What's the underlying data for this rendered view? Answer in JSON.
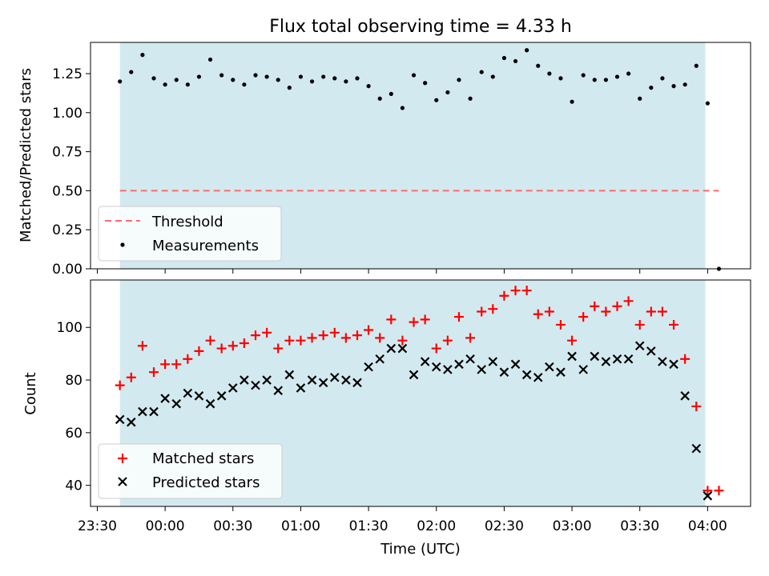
{
  "chart_data": [
    {
      "type": "scatter",
      "title": "Flux total observing time = 4.33 h",
      "ylabel": "Matched/Predicted stars",
      "ylim": [
        0,
        1.45
      ],
      "yticks": [
        "0.00",
        "0.25",
        "0.50",
        "0.75",
        "1.00",
        "1.25"
      ],
      "ytick_values": [
        0,
        0.25,
        0.5,
        0.75,
        1.0,
        1.25
      ],
      "shaded_span": [
        "23:40",
        "03:59"
      ],
      "threshold": {
        "name": "Threshold",
        "value": 0.5,
        "x_range": [
          "23:40",
          "04:05"
        ],
        "color": "#ff6b6b"
      },
      "series": [
        {
          "name": "Measurements",
          "color": "#000000",
          "marker": "dot",
          "values": [
            1.2,
            1.26,
            1.37,
            1.22,
            1.18,
            1.21,
            1.18,
            1.23,
            1.34,
            1.24,
            1.21,
            1.18,
            1.24,
            1.23,
            1.21,
            1.16,
            1.23,
            1.2,
            1.23,
            1.22,
            1.2,
            1.22,
            1.17,
            1.09,
            1.12,
            1.03,
            1.24,
            1.19,
            1.08,
            1.13,
            1.21,
            1.09,
            1.26,
            1.23,
            1.35,
            1.33,
            1.4,
            1.3,
            1.25,
            1.22,
            1.07,
            1.24,
            1.21,
            1.21,
            1.23,
            1.25,
            1.09,
            1.16,
            1.22,
            1.17,
            1.18,
            1.3,
            1.06,
            0.0
          ]
        }
      ],
      "legend": {
        "location": "lower-left"
      }
    },
    {
      "type": "scatter",
      "xlabel": "Time (UTC)",
      "ylabel": "Count",
      "ylim": [
        32,
        118
      ],
      "yticks": [
        "40",
        "60",
        "80",
        "100"
      ],
      "ytick_values": [
        40,
        60,
        80,
        100
      ],
      "shaded_span": [
        "23:40",
        "03:59"
      ],
      "series": [
        {
          "name": "Matched stars",
          "color": "#ff0000",
          "marker": "plus",
          "values": [
            78,
            81,
            93,
            83,
            86,
            86,
            88,
            91,
            95,
            92,
            93,
            94,
            97,
            98,
            92,
            95,
            95,
            96,
            97,
            98,
            96,
            97,
            99,
            96,
            103,
            95,
            102,
            103,
            92,
            95,
            104,
            96,
            106,
            107,
            112,
            114,
            114,
            105,
            106,
            101,
            95,
            104,
            108,
            106,
            108,
            110,
            101,
            106,
            106,
            101,
            88,
            70,
            38,
            38
          ]
        },
        {
          "name": "Predicted stars",
          "color": "#000000",
          "marker": "x",
          "values": [
            65,
            64,
            68,
            68,
            73,
            71,
            75,
            74,
            71,
            74,
            77,
            80,
            78,
            80,
            76,
            82,
            77,
            80,
            79,
            81,
            80,
            79,
            85,
            88,
            92,
            92,
            82,
            87,
            85,
            84,
            86,
            88,
            84,
            87,
            83,
            86,
            82,
            81,
            85,
            83,
            89,
            84,
            89,
            87,
            88,
            88,
            93,
            91,
            87,
            86,
            74,
            54,
            36,
            null
          ]
        }
      ],
      "legend": {
        "location": "lower-left"
      }
    }
  ],
  "x_axis": {
    "ticks": [
      "23:30",
      "00:00",
      "00:30",
      "01:00",
      "01:30",
      "02:00",
      "02:30",
      "03:00",
      "03:30",
      "04:00"
    ],
    "range": [
      "23:27",
      "04:19"
    ],
    "sample_times": [
      "23:40",
      "23:45",
      "23:50",
      "23:55",
      "00:00",
      "00:05",
      "00:10",
      "00:15",
      "00:20",
      "00:25",
      "00:30",
      "00:35",
      "00:40",
      "00:45",
      "00:50",
      "00:55",
      "01:00",
      "01:05",
      "01:10",
      "01:15",
      "01:20",
      "01:25",
      "01:30",
      "01:35",
      "01:40",
      "01:45",
      "01:50",
      "01:55",
      "02:00",
      "02:05",
      "02:10",
      "02:15",
      "02:20",
      "02:25",
      "02:30",
      "02:35",
      "02:40",
      "02:45",
      "02:50",
      "02:55",
      "03:00",
      "03:05",
      "03:10",
      "03:15",
      "03:20",
      "03:25",
      "03:30",
      "03:35",
      "03:40",
      "03:45",
      "03:50",
      "03:55",
      "04:00",
      "04:05"
    ]
  },
  "colors": {
    "shade": "#d3e9f0",
    "threshold": "#ff6b6b",
    "matched": "#ff0000",
    "predicted": "#000000"
  }
}
